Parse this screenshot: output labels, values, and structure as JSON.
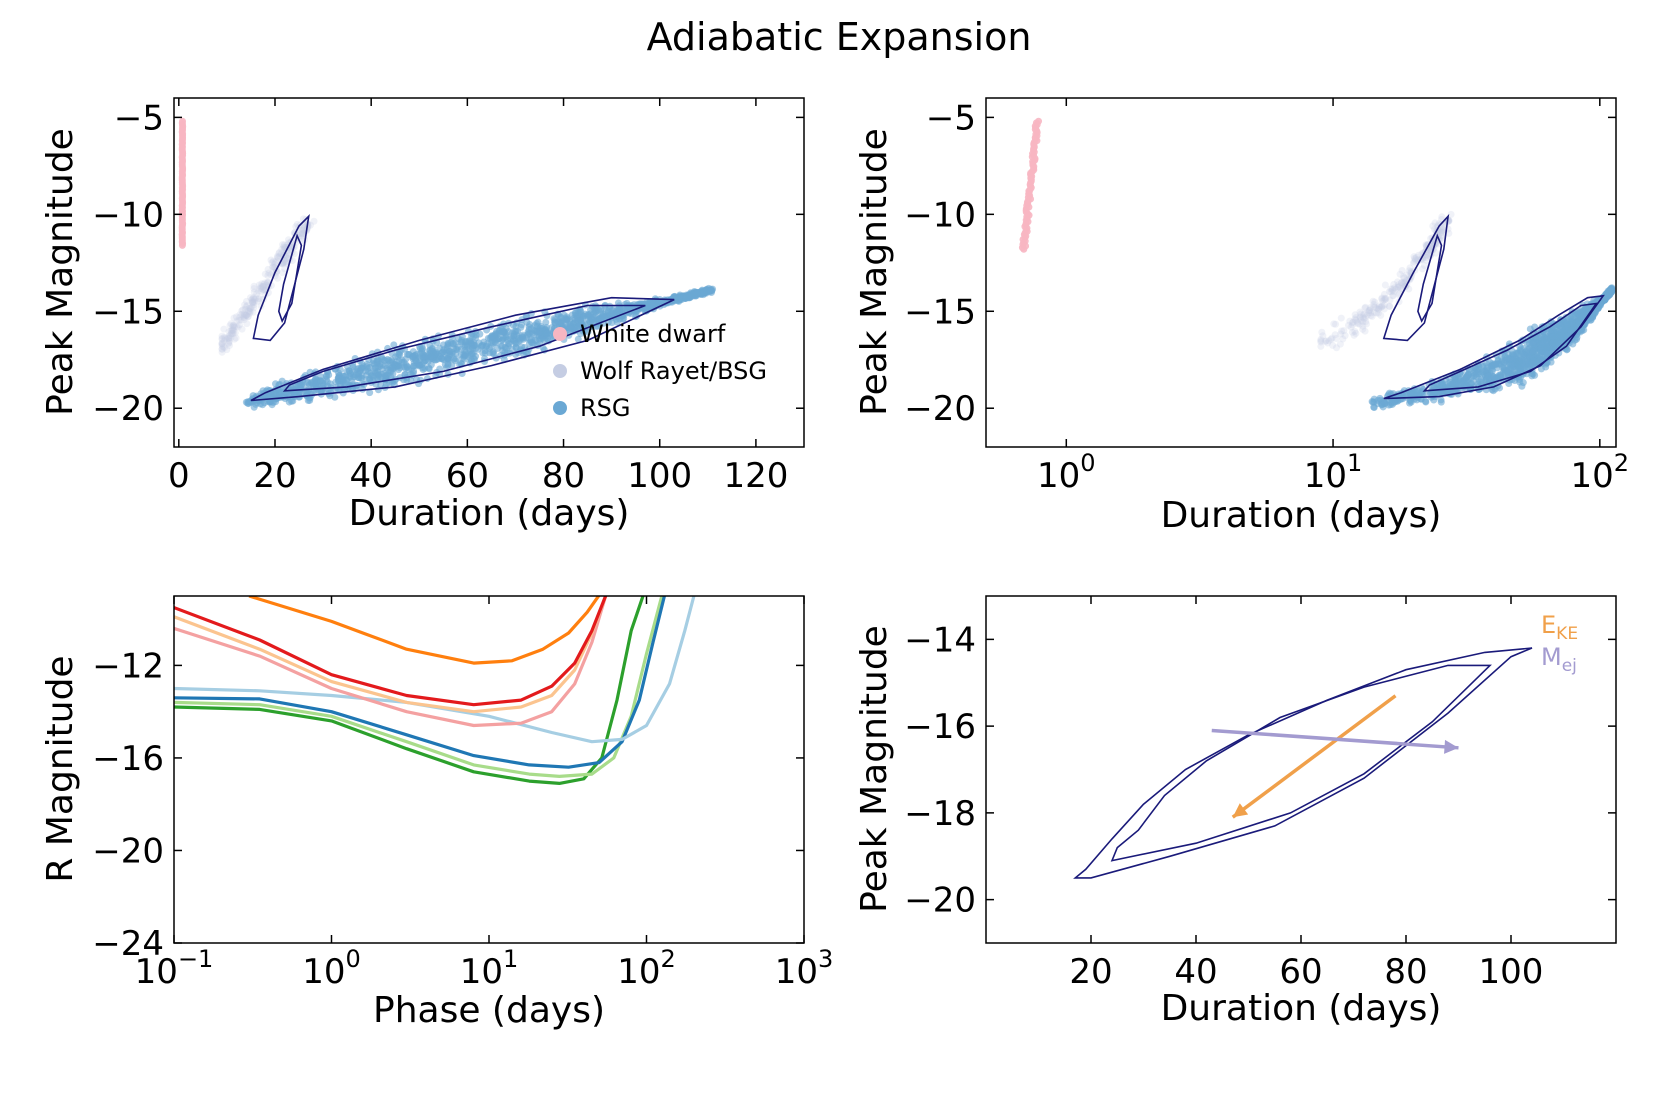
{
  "title": "Adiabatic Expansion",
  "colors": {
    "white_dwarf": "#f7b6c2",
    "wolf_rayet": "#c5cde3",
    "rsg": "#6aa8d4",
    "contour": "#1a1a7a",
    "eke": "#f0a04a",
    "mej": "#a39bd0"
  },
  "chart_data": [
    {
      "id": "top-left",
      "type": "scatter",
      "xscale": "linear",
      "xlim": [
        -1,
        130
      ],
      "ylim": [
        -4,
        -22
      ],
      "xlabel": "Duration (days)",
      "ylabel": "Peak Magnitude",
      "xticks": [
        0,
        20,
        40,
        60,
        80,
        100,
        120
      ],
      "xtick_labels": [
        "0",
        "20",
        "40",
        "60",
        "80",
        "100",
        "120"
      ],
      "yticks": [
        -20,
        -15,
        -10,
        -5
      ],
      "ytick_labels": [
        "−20",
        "−15",
        "−10",
        "−5"
      ],
      "legend": {
        "position": "lower-right",
        "entries": [
          "White dwarf",
          "Wolf Rayet/BSG",
          "RSG"
        ]
      },
      "series": [
        {
          "name": "White dwarf",
          "x_range": [
            0.7,
            0.8
          ],
          "y_range": [
            -5.2,
            -11.6
          ],
          "n": 70
        },
        {
          "name": "Wolf Rayet/BSG",
          "x_range": [
            9,
            27
          ],
          "y_range": [
            -10.2,
            -16.8
          ],
          "n": 260
        },
        {
          "name": "RSG",
          "x_range": [
            14,
            111
          ],
          "y_range": [
            -13.9,
            -19.7
          ],
          "n": 1300
        }
      ],
      "contours": [
        {
          "group": "RSG",
          "level": "outer",
          "points": [
            [
              15,
              -19.6
            ],
            [
              25,
              -19.4
            ],
            [
              45,
              -18.9
            ],
            [
              65,
              -17.8
            ],
            [
              85,
              -16.5
            ],
            [
              103,
              -14.4
            ],
            [
              90,
              -14.3
            ],
            [
              70,
              -15.2
            ],
            [
              50,
              -16.5
            ],
            [
              30,
              -18.0
            ],
            [
              18,
              -19.2
            ]
          ]
        },
        {
          "group": "RSG",
          "level": "inner",
          "points": [
            [
              22,
              -19.1
            ],
            [
              35,
              -18.9
            ],
            [
              55,
              -18.1
            ],
            [
              75,
              -16.8
            ],
            [
              97,
              -14.7
            ],
            [
              85,
              -14.7
            ],
            [
              65,
              -15.8
            ],
            [
              45,
              -17.0
            ],
            [
              30,
              -18.1
            ],
            [
              23,
              -18.8
            ]
          ]
        },
        {
          "group": "Wolf Rayet/BSG",
          "level": "outer",
          "points": [
            [
              15.5,
              -16.4
            ],
            [
              19,
              -16.5
            ],
            [
              22,
              -15.6
            ],
            [
              26,
              -11.8
            ],
            [
              27,
              -10.1
            ],
            [
              25,
              -10.6
            ],
            [
              20,
              -13.0
            ],
            [
              16.5,
              -15.2
            ]
          ]
        },
        {
          "group": "Wolf Rayet/BSG",
          "level": "inner",
          "points": [
            [
              21.5,
              -15.5
            ],
            [
              23.5,
              -14.6
            ],
            [
              25.5,
              -11.6
            ],
            [
              24.6,
              -11.1
            ],
            [
              21.8,
              -13.6
            ],
            [
              20.8,
              -15.0
            ]
          ]
        }
      ]
    },
    {
      "id": "top-right",
      "type": "scatter",
      "xscale": "log",
      "xlim": [
        0.5,
        115
      ],
      "ylim": [
        -4,
        -22
      ],
      "xlabel": "Duration (days)",
      "ylabel": "Peak Magnitude",
      "xticks": [
        1,
        10,
        100
      ],
      "xtick_labels": [
        [
          "10",
          "0"
        ],
        [
          "10",
          "1"
        ],
        [
          "10",
          "2"
        ]
      ],
      "yticks": [
        -20,
        -15,
        -10,
        -5
      ],
      "ytick_labels": [
        "−20",
        "−15",
        "−10",
        "−5"
      ],
      "series": [
        {
          "name": "White dwarf",
          "x_range": [
            0.68,
            0.79
          ],
          "y_range": [
            -5.2,
            -11.8
          ],
          "n": 80
        },
        {
          "name": "Wolf Rayet/BSG",
          "x_range": [
            9,
            27
          ],
          "y_range": [
            -10.2,
            -16.8
          ],
          "n": 260
        },
        {
          "name": "RSG",
          "x_range": [
            14,
            108
          ],
          "y_range": [
            -13.9,
            -19.7
          ],
          "n": 1300
        }
      ],
      "contours": [
        {
          "group": "RSG",
          "level": "outer",
          "points": [
            [
              15.5,
              -19.5
            ],
            [
              25,
              -19.4
            ],
            [
              40,
              -18.9
            ],
            [
              60,
              -17.8
            ],
            [
              85,
              -15.8
            ],
            [
              103,
              -14.2
            ],
            [
              90,
              -14.3
            ],
            [
              70,
              -15.2
            ],
            [
              50,
              -16.5
            ],
            [
              30,
              -18.0
            ],
            [
              18,
              -19.2
            ]
          ]
        },
        {
          "group": "RSG",
          "level": "inner",
          "points": [
            [
              22,
              -19.1
            ],
            [
              35,
              -18.9
            ],
            [
              55,
              -18.1
            ],
            [
              75,
              -16.8
            ],
            [
              97,
              -14.6
            ],
            [
              85,
              -14.7
            ],
            [
              65,
              -15.8
            ],
            [
              45,
              -17.0
            ],
            [
              30,
              -18.1
            ],
            [
              23,
              -18.8
            ]
          ]
        },
        {
          "group": "Wolf Rayet/BSG",
          "level": "outer",
          "points": [
            [
              15.5,
              -16.4
            ],
            [
              19,
              -16.5
            ],
            [
              22,
              -15.6
            ],
            [
              26,
              -11.8
            ],
            [
              27,
              -10.1
            ],
            [
              25,
              -10.6
            ],
            [
              20,
              -13.0
            ],
            [
              16.5,
              -15.2
            ]
          ]
        },
        {
          "group": "Wolf Rayet/BSG",
          "level": "inner",
          "points": [
            [
              21.5,
              -15.5
            ],
            [
              23.5,
              -14.6
            ],
            [
              25.5,
              -11.6
            ],
            [
              24.6,
              -11.1
            ],
            [
              21.8,
              -13.6
            ],
            [
              20.8,
              -15.0
            ]
          ]
        }
      ]
    },
    {
      "id": "bottom-left",
      "type": "line",
      "xscale": "log",
      "xlim": [
        0.1,
        1000
      ],
      "ylim": [
        -9,
        -24
      ],
      "xlabel": "Phase (days)",
      "ylabel": "R Magnitude",
      "xticks": [
        0.1,
        1,
        10,
        100,
        1000
      ],
      "xtick_labels": [
        [
          "10",
          "−1"
        ],
        [
          "10",
          "0"
        ],
        [
          "10",
          "1"
        ],
        [
          "10",
          "2"
        ],
        [
          "10",
          "3"
        ]
      ],
      "yticks": [
        -24,
        -20,
        -16,
        -12
      ],
      "ytick_labels": [
        "−24",
        "−20",
        "−16",
        "−12"
      ],
      "series": [
        {
          "name": "green",
          "color": "#2ca02c",
          "x": [
            0.1,
            0.35,
            1,
            3,
            8,
            18,
            28,
            40,
            52,
            65,
            80,
            95
          ],
          "y": [
            -13.8,
            -13.9,
            -14.4,
            -15.6,
            -16.6,
            -17.0,
            -17.1,
            -16.9,
            -16.0,
            -13.5,
            -10.5,
            -9.0
          ]
        },
        {
          "name": "light green",
          "color": "#a8dc8a",
          "x": [
            0.1,
            0.35,
            1,
            3,
            8,
            18,
            28,
            45,
            62,
            80,
            100,
            125
          ],
          "y": [
            -13.6,
            -13.7,
            -14.2,
            -15.3,
            -16.3,
            -16.7,
            -16.8,
            -16.7,
            -16.0,
            -14.2,
            -11.5,
            -9.0
          ]
        },
        {
          "name": "blue",
          "color": "#1f77b4",
          "x": [
            0.1,
            0.35,
            1,
            3,
            8,
            18,
            32,
            50,
            70,
            90,
            110,
            130
          ],
          "y": [
            -13.4,
            -13.45,
            -14.0,
            -15.0,
            -15.9,
            -16.3,
            -16.4,
            -16.2,
            -15.3,
            -13.5,
            -11.0,
            -9.0
          ]
        },
        {
          "name": "light blue",
          "color": "#a6cee3",
          "x": [
            0.1,
            0.35,
            1,
            3,
            10,
            25,
            45,
            70,
            100,
            140,
            175,
            200
          ],
          "y": [
            -13.0,
            -13.1,
            -13.3,
            -13.6,
            -14.2,
            -14.9,
            -15.3,
            -15.2,
            -14.6,
            -12.8,
            -10.5,
            -9.0
          ]
        },
        {
          "name": "pink",
          "color": "#f4a1a1",
          "x": [
            0.1,
            0.35,
            1,
            3,
            8,
            16,
            25,
            35,
            45,
            55
          ],
          "y": [
            -10.4,
            -11.6,
            -13.0,
            -14.0,
            -14.6,
            -14.5,
            -14.0,
            -12.8,
            -11.0,
            -9.0
          ]
        },
        {
          "name": "light orange",
          "color": "#fbc48f",
          "x": [
            0.1,
            0.35,
            1,
            3,
            8,
            16,
            25,
            35,
            45,
            55
          ],
          "y": [
            -9.9,
            -11.3,
            -12.7,
            -13.6,
            -14.0,
            -13.8,
            -13.3,
            -12.2,
            -10.6,
            -9.0
          ]
        },
        {
          "name": "red",
          "color": "#e31a1c",
          "x": [
            0.1,
            0.35,
            1,
            3,
            8,
            16,
            25,
            35,
            45,
            55
          ],
          "y": [
            -9.5,
            -10.9,
            -12.4,
            -13.3,
            -13.7,
            -13.5,
            -12.9,
            -11.9,
            -10.5,
            -9.0
          ]
        },
        {
          "name": "orange",
          "color": "#ff7f0e",
          "x": [
            0.3,
            1,
            3,
            8,
            14,
            22,
            32,
            42,
            52
          ],
          "y": [
            -9.0,
            -10.1,
            -11.3,
            -11.9,
            -11.8,
            -11.3,
            -10.6,
            -9.7,
            -8.8
          ]
        }
      ]
    },
    {
      "id": "bottom-right",
      "type": "line",
      "xscale": "linear",
      "xlim": [
        0,
        120
      ],
      "ylim": [
        -13,
        -21
      ],
      "xlabel": "Duration (days)",
      "ylabel": "Peak Magnitude",
      "xticks": [
        20,
        40,
        60,
        80,
        100
      ],
      "xtick_labels": [
        "20",
        "40",
        "60",
        "80",
        "100"
      ],
      "yticks": [
        -20,
        -18,
        -16,
        -14
      ],
      "ytick_labels": [
        "−20",
        "−18",
        "−16",
        "−14"
      ],
      "legend": {
        "position": "top-right",
        "entries": [
          {
            "main": "E",
            "sub": "KE"
          },
          {
            "main": "M",
            "sub": "ej"
          }
        ]
      },
      "contours": [
        {
          "level": "outer",
          "points": [
            [
              17,
              -19.5
            ],
            [
              20,
              -19.5
            ],
            [
              35,
              -19.0
            ],
            [
              55,
              -18.3
            ],
            [
              72,
              -17.2
            ],
            [
              88,
              -15.7
            ],
            [
              100,
              -14.4
            ],
            [
              104,
              -14.2
            ],
            [
              95,
              -14.3
            ],
            [
              80,
              -14.7
            ],
            [
              65,
              -15.4
            ],
            [
              50,
              -16.2
            ],
            [
              38,
              -17.0
            ],
            [
              30,
              -17.8
            ],
            [
              24,
              -18.6
            ],
            [
              19,
              -19.3
            ]
          ]
        },
        {
          "level": "inner",
          "points": [
            [
              24,
              -19.1
            ],
            [
              40,
              -18.7
            ],
            [
              58,
              -18.0
            ],
            [
              72,
              -17.1
            ],
            [
              85,
              -15.9
            ],
            [
              96,
              -14.6
            ],
            [
              88,
              -14.6
            ],
            [
              72,
              -15.1
            ],
            [
              56,
              -15.8
            ],
            [
              42,
              -16.8
            ],
            [
              34,
              -17.6
            ],
            [
              29,
              -18.4
            ],
            [
              25,
              -18.8
            ]
          ]
        }
      ],
      "arrows": [
        {
          "name": "E_KE",
          "from": [
            78,
            -15.3
          ],
          "to": [
            47,
            -18.1
          ]
        },
        {
          "name": "M_ej",
          "from": [
            43,
            -16.1
          ],
          "to": [
            90,
            -16.5
          ]
        }
      ]
    }
  ]
}
